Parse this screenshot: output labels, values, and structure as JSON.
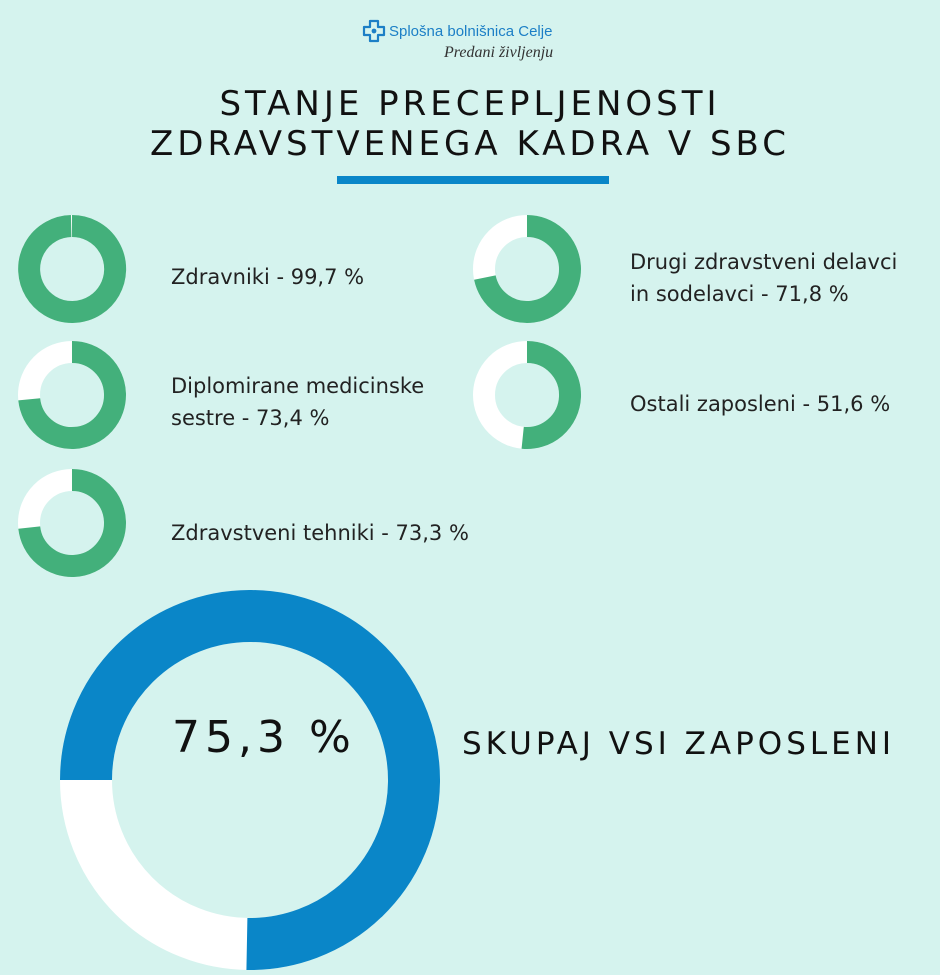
{
  "header": {
    "logo_name": "Splošna bolnišnica Celje",
    "logo_tagline": "Predani življenju",
    "logo_icon": "hospital-cross-icon",
    "title_line1": "STANJE PRECEPLJENOSTI",
    "title_line2": "ZDRAVSTVENEGA KADRA V SBC"
  },
  "colors": {
    "background": "#d5f3ee",
    "ring_green": "#43b07b",
    "ring_track": "#ffffff",
    "total_blue": "#0a86c8",
    "accent_blue": "#1c7fc6"
  },
  "chart_data": [
    {
      "type": "pie",
      "series": [
        {
          "label_line1": "Zdravniki - 99,7 %",
          "label_line2": "",
          "value": 99.7
        },
        {
          "label_line1": "Drugi zdravstveni delavci",
          "label_line2": "in sodelavci - 71,8 %",
          "value": 71.8
        },
        {
          "label_line1": "Diplomirane medicinske",
          "label_line2": "sestre - 73,4 %",
          "value": 73.4
        },
        {
          "label_line1": "Ostali zaposleni - 51,6 %",
          "label_line2": "",
          "value": 51.6
        },
        {
          "label_line1": "Zdravstveni tehniki - 73,3 %",
          "label_line2": "",
          "value": 73.3
        }
      ]
    },
    {
      "type": "pie",
      "total": {
        "value": 75.3,
        "value_text": "75,3 %",
        "label": "SKUPAJ VSI ZAPOSLENI"
      }
    }
  ]
}
